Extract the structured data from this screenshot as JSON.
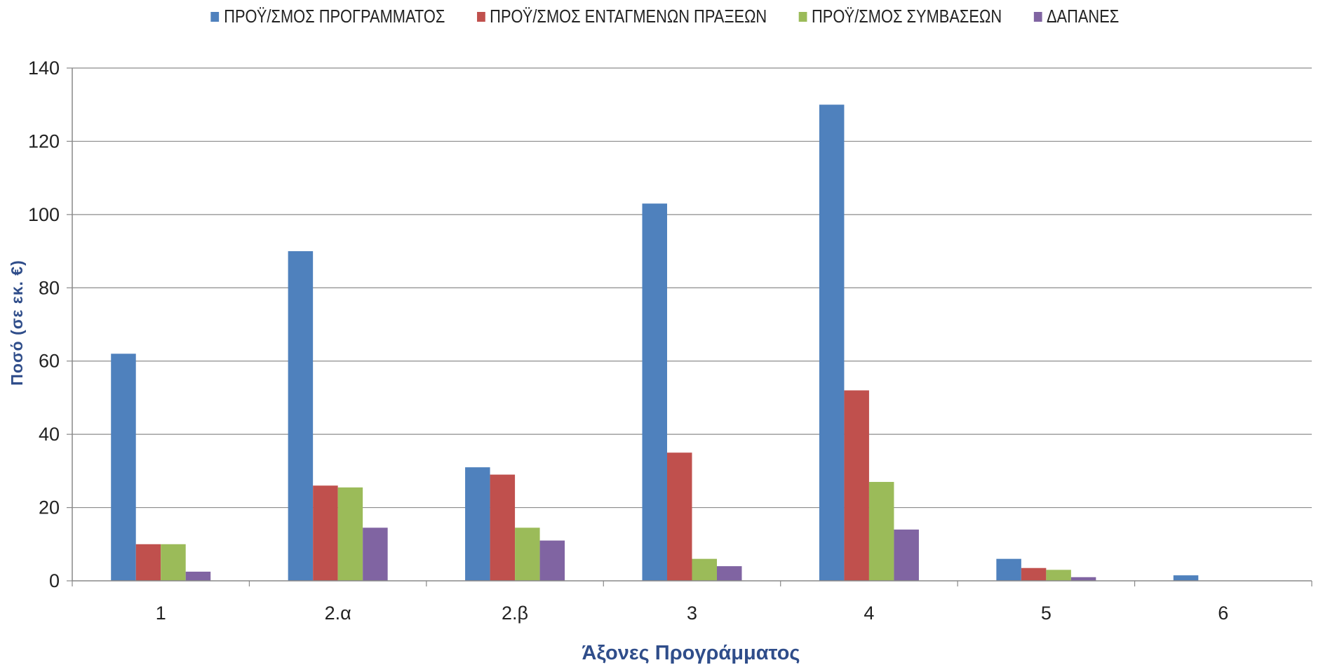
{
  "chart_data": {
    "type": "bar",
    "categories": [
      "1",
      "2.α",
      "2.β",
      "3",
      "4",
      "5",
      "6"
    ],
    "series": [
      {
        "name": "ΠΡΟΫ/ΣΜΟΣ ΠΡΟΓΡΑΜΜΑΤΟΣ",
        "color": "#4f81bd",
        "values": [
          62,
          90,
          31,
          103,
          130,
          6,
          1.5
        ]
      },
      {
        "name": "ΠΡΟΫ/ΣΜΟΣ ΕΝΤΑΓΜΕΝΩΝ ΠΡΑΞΕΩΝ",
        "color": "#c0504d",
        "values": [
          10,
          26,
          29,
          35,
          52,
          3.5,
          0
        ]
      },
      {
        "name": "ΠΡΟΫ/ΣΜΟΣ ΣΥΜΒΑΣΕΩΝ",
        "color": "#9bbb59",
        "values": [
          10,
          25.5,
          14.5,
          6,
          27,
          3,
          0
        ]
      },
      {
        "name": "ΔΑΠΑΝΕΣ",
        "color": "#8064a2",
        "values": [
          2.5,
          14.5,
          11,
          4,
          14,
          1,
          0
        ]
      }
    ],
    "xlabel": "Άξονες Προγράμματος",
    "ylabel": "Ποσό (σε εκ. €)",
    "ylim": [
      0,
      140
    ],
    "yticks": [
      0,
      20,
      40,
      60,
      80,
      100,
      120,
      140
    ],
    "grid": true,
    "legend_position": "top"
  }
}
